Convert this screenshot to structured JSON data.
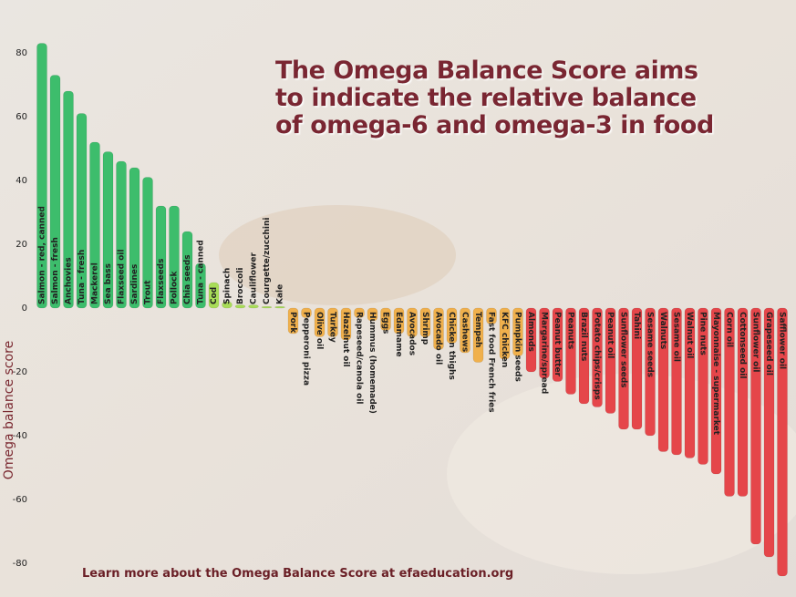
{
  "chart_data": {
    "type": "bar",
    "title_lines": [
      "The Omega Balance Score aims",
      "to indicate the relative balance",
      "of omega-6 and omega-3 in food"
    ],
    "ylabel": "Omega balance score",
    "footer": "Learn more about the Omega Balance Score at efaeducation.org",
    "categories": [
      "Salmon - red, canned",
      "Salmon - fresh",
      "Anchovies",
      "Tuna - fresh",
      "Mackerel",
      "Sea bass",
      "Flaxseed oil",
      "Sardines",
      "Trout",
      "Flaxseeds",
      "Pollock",
      "Chia seeds",
      "Tuna - canned",
      "Cod",
      "Spinach",
      "Broccoli",
      "Cauliflower",
      "Courgette/zucchini",
      "Kale",
      "Pork",
      "Pepperoni pizza",
      "Olive oil",
      "Turkey",
      "Hazelnut oil",
      "Rapeseed/canola oil",
      "Hummus (homemade)",
      "Eggs",
      "Edamame",
      "Avocados",
      "Shrimp",
      "Avocado oil",
      "Chicken thighs",
      "Cashews",
      "Tempeh",
      "Fast food French fries",
      "KFC chicken",
      "Pumpkin seeds",
      "Almonds",
      "Margarine/spread",
      "Peanut butter",
      "Peanuts",
      "Brazil nuts",
      "Potato chips/crisps",
      "Peanut oil",
      "Sunflower seeds",
      "Tahini",
      "Sesame seeds",
      "Walnuts",
      "Sesame oil",
      "Walnut oil",
      "Pine nuts",
      "Mayonnaise - supermarket",
      "Corn oil",
      "Cottonseed oil",
      "Sunflower oil",
      "Grapeseed oil",
      "Safflower oil"
    ],
    "values": [
      83,
      73,
      68,
      61,
      52,
      49,
      46,
      44,
      41,
      32,
      32,
      24,
      14,
      8,
      2,
      1,
      1,
      0.5,
      0.5,
      -8,
      -3,
      -9,
      -9,
      -10,
      -3,
      -4,
      -7,
      -8,
      -9,
      -9,
      -13,
      -11,
      -14,
      -17,
      -5,
      -16,
      -15,
      -20,
      -22,
      -23,
      -27,
      -30,
      -31,
      -33,
      -38,
      -38,
      -40,
      -45,
      -46,
      -47,
      -49,
      -52,
      -59,
      -59,
      -74,
      -78,
      -84
    ],
    "colors": [
      "#3dbd6c",
      "#3dbd6c",
      "#3dbd6c",
      "#3dbd6c",
      "#3dbd6c",
      "#3dbd6c",
      "#3dbd6c",
      "#3dbd6c",
      "#3dbd6c",
      "#3dbd6c",
      "#3dbd6c",
      "#3dbd6c",
      "#3dbd6c",
      "#a8dc58",
      "#a8dc58",
      "#a8dc58",
      "#a8dc58",
      "#a8dc58",
      "#a8dc58",
      "#f0b04c",
      "#f0b04c",
      "#f0b04c",
      "#f0b04c",
      "#f0b04c",
      "#f0b04c",
      "#f0b04c",
      "#f0b04c",
      "#f0b04c",
      "#f0b04c",
      "#f0b04c",
      "#f0b04c",
      "#f0b04c",
      "#f0b04c",
      "#f0b04c",
      "#f0b04c",
      "#f0b04c",
      "#f0b04c",
      "#e5464a",
      "#e5464a",
      "#e5464a",
      "#e5464a",
      "#e5464a",
      "#e5464a",
      "#e5464a",
      "#e5464a",
      "#e5464a",
      "#e5464a",
      "#e5464a",
      "#e5464a",
      "#e5464a",
      "#e5464a",
      "#e5464a",
      "#e5464a",
      "#e5464a",
      "#e5464a",
      "#e5464a",
      "#e5464a"
    ],
    "ylim": [
      -85,
      85
    ],
    "yticks": [
      -80,
      -60,
      -40,
      -20,
      0,
      20,
      40,
      60,
      80
    ]
  }
}
